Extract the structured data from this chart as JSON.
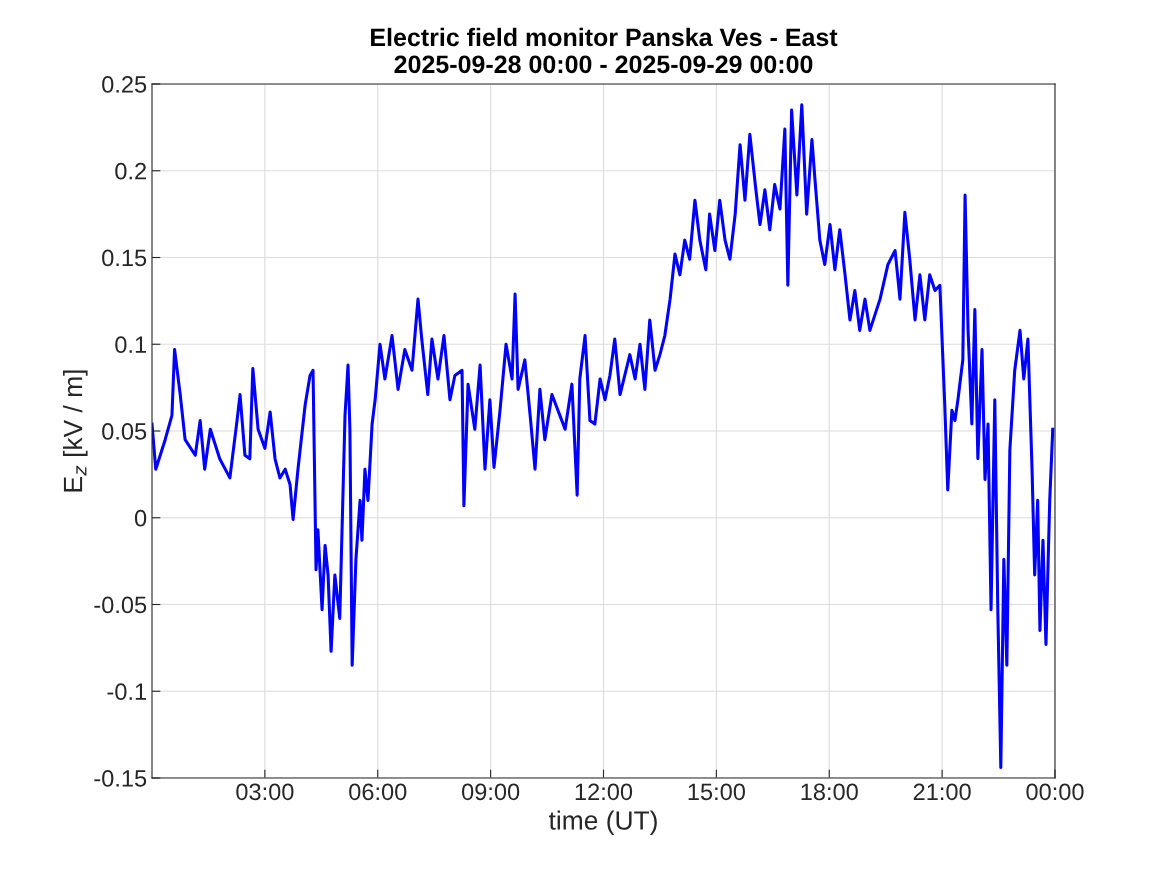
{
  "chart_data": {
    "type": "line",
    "title": "Electric field monitor Panska Ves - East\n2025-09-28 00:00 - 2025-09-29 00:00",
    "xlabel": "time (UT)",
    "ylabel": "E$_{z}$ [kV / m]",
    "xlim": [
      0,
      24
    ],
    "xticks": [
      {
        "value": 3,
        "label": "03:00"
      },
      {
        "value": 6,
        "label": "06:00"
      },
      {
        "value": 9,
        "label": "09:00"
      },
      {
        "value": 12,
        "label": "12:00"
      },
      {
        "value": 15,
        "label": "15:00"
      },
      {
        "value": 18,
        "label": "18:00"
      },
      {
        "value": 21,
        "label": "21:00"
      },
      {
        "value": 24,
        "label": "00:00"
      }
    ],
    "ylim": [
      -0.15,
      0.25
    ],
    "yticks": [
      -0.15,
      -0.1,
      -0.05,
      0,
      0.05,
      0.1,
      0.15,
      0.2,
      0.25
    ],
    "grid": true,
    "line_style": "solid",
    "series": [
      {
        "color": "#0000ff",
        "x": [
          0.0,
          0.1,
          0.35,
          0.53,
          0.6,
          0.75,
          0.88,
          1.15,
          1.28,
          1.4,
          1.55,
          1.8,
          2.07,
          2.26,
          2.34,
          2.47,
          2.6,
          2.68,
          2.82,
          3.0,
          3.14,
          3.27,
          3.4,
          3.54,
          3.67,
          3.75,
          3.88,
          4.07,
          4.2,
          4.28,
          4.36,
          4.41,
          4.52,
          4.6,
          4.68,
          4.76,
          4.86,
          4.99,
          5.13,
          5.21,
          5.26,
          5.32,
          5.42,
          5.53,
          5.58,
          5.66,
          5.74,
          5.85,
          5.93,
          6.06,
          6.19,
          6.38,
          6.54,
          6.72,
          6.91,
          7.07,
          7.17,
          7.33,
          7.44,
          7.6,
          7.76,
          7.92,
          8.05,
          8.24,
          8.29,
          8.4,
          8.58,
          8.72,
          8.85,
          8.98,
          9.09,
          9.25,
          9.41,
          9.57,
          9.65,
          9.73,
          9.91,
          10.05,
          10.18,
          10.31,
          10.44,
          10.63,
          10.84,
          10.98,
          11.16,
          11.3,
          11.37,
          11.51,
          11.64,
          11.77,
          11.91,
          12.04,
          12.17,
          12.3,
          12.44,
          12.7,
          12.84,
          12.97,
          13.1,
          13.23,
          13.37,
          13.5,
          13.63,
          13.77,
          13.9,
          14.03,
          14.16,
          14.29,
          14.43,
          14.56,
          14.72,
          14.82,
          14.96,
          15.09,
          15.23,
          15.36,
          15.5,
          15.63,
          15.76,
          15.89,
          16.05,
          16.16,
          16.29,
          16.42,
          16.55,
          16.69,
          16.82,
          16.9,
          17.0,
          17.14,
          17.27,
          17.4,
          17.54,
          17.62,
          17.75,
          17.88,
          18.02,
          18.15,
          18.28,
          18.42,
          18.55,
          18.68,
          18.81,
          18.95,
          19.08,
          19.35,
          19.56,
          19.75,
          19.88,
          20.01,
          20.14,
          20.28,
          20.41,
          20.54,
          20.67,
          20.81,
          20.94,
          21.07,
          21.15,
          21.26,
          21.34,
          21.42,
          21.55,
          21.61,
          21.69,
          21.79,
          21.87,
          21.95,
          22.06,
          22.14,
          22.22,
          22.3,
          22.4,
          22.48,
          22.56,
          22.64,
          22.72,
          22.8,
          22.93,
          23.07,
          23.17,
          23.28,
          23.39,
          23.46,
          23.54,
          23.6,
          23.68,
          23.76,
          23.86,
          23.94
        ],
        "values": [
          0.054,
          0.028,
          0.045,
          0.059,
          0.097,
          0.071,
          0.045,
          0.036,
          0.056,
          0.028,
          0.051,
          0.034,
          0.023,
          0.056,
          0.071,
          0.036,
          0.034,
          0.086,
          0.051,
          0.04,
          0.061,
          0.034,
          0.023,
          0.028,
          0.019,
          -0.001,
          0.028,
          0.065,
          0.082,
          0.085,
          -0.03,
          -0.007,
          -0.053,
          -0.016,
          -0.033,
          -0.077,
          -0.033,
          -0.058,
          0.059,
          0.088,
          0.051,
          -0.085,
          -0.024,
          0.01,
          -0.013,
          0.028,
          0.01,
          0.054,
          0.068,
          0.1,
          0.08,
          0.105,
          0.074,
          0.097,
          0.085,
          0.126,
          0.103,
          0.071,
          0.103,
          0.08,
          0.105,
          0.068,
          0.082,
          0.085,
          0.007,
          0.077,
          0.051,
          0.088,
          0.028,
          0.068,
          0.029,
          0.062,
          0.1,
          0.08,
          0.129,
          0.074,
          0.091,
          0.059,
          0.028,
          0.074,
          0.045,
          0.071,
          0.059,
          0.051,
          0.077,
          0.013,
          0.08,
          0.105,
          0.056,
          0.054,
          0.08,
          0.068,
          0.082,
          0.103,
          0.071,
          0.094,
          0.08,
          0.1,
          0.074,
          0.114,
          0.085,
          0.094,
          0.105,
          0.126,
          0.152,
          0.14,
          0.16,
          0.149,
          0.183,
          0.16,
          0.143,
          0.175,
          0.154,
          0.183,
          0.16,
          0.149,
          0.175,
          0.215,
          0.183,
          0.221,
          0.189,
          0.169,
          0.189,
          0.166,
          0.192,
          0.178,
          0.224,
          0.134,
          0.235,
          0.186,
          0.238,
          0.175,
          0.218,
          0.195,
          0.16,
          0.146,
          0.169,
          0.143,
          0.166,
          0.14,
          0.114,
          0.131,
          0.108,
          0.126,
          0.108,
          0.126,
          0.146,
          0.154,
          0.126,
          0.176,
          0.149,
          0.114,
          0.14,
          0.114,
          0.14,
          0.131,
          0.134,
          0.065,
          0.016,
          0.062,
          0.056,
          0.068,
          0.091,
          0.186,
          0.108,
          0.054,
          0.12,
          0.034,
          0.097,
          0.022,
          0.054,
          -0.053,
          0.068,
          -0.053,
          -0.144,
          -0.024,
          -0.085,
          0.039,
          0.085,
          0.108,
          0.08,
          0.103,
          0.028,
          -0.033,
          0.01,
          -0.065,
          -0.013,
          -0.073,
          0.01,
          0.051
        ]
      }
    ]
  }
}
